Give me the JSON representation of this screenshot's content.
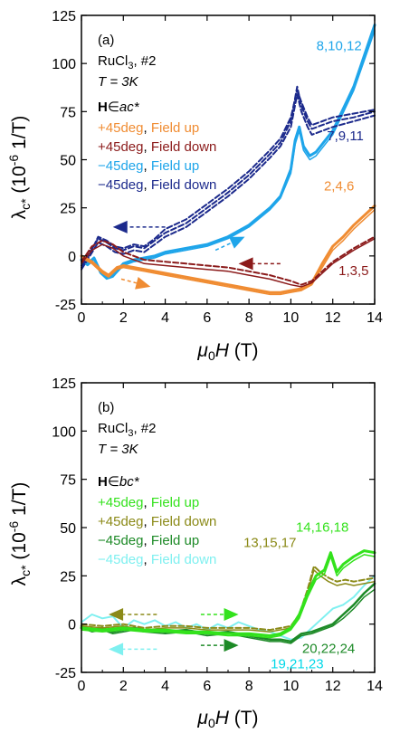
{
  "chart_data": [
    {
      "type": "line",
      "panel_label": "(a)",
      "sample_name": "RuCl",
      "sample_sub": "3",
      "sample_suffix": ", #2",
      "temperature": "T = 3K",
      "field_dir_prefix": "H",
      "field_dir_symbol": "∈",
      "field_dir_value": "ac*",
      "xlabel": "μ0H (T)",
      "ylabel": "λc* (10-6 1/T)",
      "xlim": [
        0,
        14
      ],
      "ylim": [
        -25,
        125
      ],
      "xticks": [
        0,
        2,
        4,
        6,
        8,
        10,
        12,
        14
      ],
      "yticks": [
        -25,
        0,
        25,
        50,
        75,
        100,
        125
      ],
      "legend": [
        {
          "angle": "+45deg",
          "dir": "Field up",
          "color": "#f08c32"
        },
        {
          "angle": "+45deg",
          "dir": "Field down",
          "color": "#8b1a1a"
        },
        {
          "angle": "−45deg",
          "dir": "Field up",
          "color": "#1ea5ea"
        },
        {
          "angle": "−45deg",
          "dir": "Field down",
          "color": "#1c2a8c"
        }
      ],
      "series": [
        {
          "color": "#1ea5ea",
          "dash": false,
          "width": 3,
          "x": [
            0,
            0.3,
            0.6,
            0.9,
            1.2,
            1.5,
            2,
            2.5,
            3,
            3.5,
            4,
            5,
            6,
            7,
            8,
            9,
            9.5,
            10,
            10.2,
            10.4,
            10.6,
            10.9,
            11.2,
            12,
            13,
            14
          ],
          "y": [
            -2,
            -4,
            -1,
            -8,
            -11,
            -10,
            -4,
            -2,
            -1,
            0,
            2,
            4,
            6,
            10,
            16,
            25,
            31,
            45,
            60,
            67,
            57,
            52,
            54,
            65,
            88,
            120
          ]
        },
        {
          "color": "#1ea5ea",
          "dash": false,
          "width": 1.5,
          "x": [
            0,
            0.3,
            0.6,
            0.9,
            1.2,
            1.5,
            2,
            2.5,
            3,
            3.5,
            4,
            5,
            6,
            7,
            8,
            9,
            9.5,
            10,
            10.2,
            10.4,
            10.6,
            10.9,
            11.2,
            12,
            13,
            14
          ],
          "y": [
            -3,
            -5,
            -2,
            -9,
            -12,
            -11,
            -5,
            -3,
            -2,
            -1,
            1,
            3,
            5,
            9,
            15,
            24,
            30,
            43,
            58,
            65,
            55,
            50,
            52,
            63,
            86,
            117
          ]
        },
        {
          "color": "#1c2a8c",
          "dash": true,
          "width": 2,
          "x": [
            0,
            0.4,
            0.8,
            1.2,
            1.6,
            2,
            2.5,
            3,
            3.5,
            4,
            5,
            6,
            7,
            8,
            9,
            9.5,
            10,
            10.3,
            10.5,
            10.8,
            11,
            11.5,
            12,
            13,
            14
          ],
          "y": [
            -5,
            2,
            9,
            7,
            4,
            3,
            5,
            4,
            8,
            12,
            17,
            25,
            33,
            42,
            53,
            59,
            70,
            88,
            78,
            70,
            66,
            68,
            70,
            72,
            75
          ]
        },
        {
          "color": "#1c2a8c",
          "dash": true,
          "width": 2,
          "x": [
            0,
            0.4,
            0.8,
            1.2,
            1.6,
            2,
            2.5,
            3,
            3.5,
            4,
            5,
            6,
            7,
            8,
            9,
            9.5,
            10,
            10.3,
            10.5,
            10.8,
            11,
            11.5,
            12,
            13,
            14
          ],
          "y": [
            -7,
            0,
            7,
            5,
            2,
            1,
            3,
            2,
            6,
            10,
            15,
            23,
            31,
            40,
            51,
            57,
            67,
            84,
            75,
            67,
            63,
            65,
            67,
            70,
            73
          ]
        },
        {
          "color": "#1c2a8c",
          "dash": true,
          "width": 2,
          "x": [
            0,
            0.4,
            0.8,
            1.2,
            1.6,
            2,
            2.5,
            3,
            3.5,
            4,
            5,
            6,
            7,
            8,
            9,
            9.5,
            10,
            10.3,
            10.5,
            10.8,
            11,
            11.5,
            12,
            13,
            14
          ],
          "y": [
            -6,
            1,
            10,
            8,
            5,
            4,
            6,
            5,
            9,
            14,
            19,
            27,
            35,
            44,
            55,
            61,
            72,
            86,
            80,
            72,
            68,
            70,
            72,
            74,
            76
          ]
        },
        {
          "color": "#f08c32",
          "dash": false,
          "width": 3,
          "x": [
            0,
            0.5,
            1,
            1.3,
            1.7,
            2,
            2.5,
            3,
            4,
            5,
            6,
            7,
            8,
            9,
            9.5,
            10,
            10.5,
            11,
            11.5,
            12,
            12.5,
            13,
            13.5,
            14
          ],
          "y": [
            0,
            -3,
            -8,
            -10,
            -6,
            -5,
            -6,
            -7,
            -9,
            -11,
            -13,
            -15,
            -17,
            -19,
            -19,
            -18,
            -17,
            -14,
            -4,
            5,
            10,
            16,
            21,
            26
          ]
        },
        {
          "color": "#f08c32",
          "dash": false,
          "width": 1.5,
          "x": [
            0,
            0.5,
            1,
            1.3,
            1.7,
            2,
            2.5,
            3,
            4,
            5,
            6,
            7,
            8,
            9,
            9.5,
            10,
            10.5,
            11,
            11.5,
            12,
            12.5,
            13,
            13.5,
            14
          ],
          "y": [
            -1,
            -4,
            -9,
            -11,
            -7,
            -6,
            -7,
            -8,
            -10,
            -12,
            -14,
            -16,
            -18,
            -20,
            -20,
            -19,
            -18,
            -15,
            -6,
            3,
            8,
            14,
            19,
            24
          ]
        },
        {
          "color": "#8b1a1a",
          "dash": true,
          "width": 2,
          "x": [
            0,
            0.5,
            1,
            1.5,
            2,
            3,
            4,
            5,
            6,
            7,
            8,
            9,
            10,
            10.5,
            11,
            11.5,
            12,
            13,
            14
          ],
          "y": [
            -3,
            5,
            8,
            6,
            2,
            -2,
            -3,
            -4,
            -5,
            -6,
            -8,
            -10,
            -13,
            -15,
            -13,
            -8,
            -3,
            4,
            10
          ]
        },
        {
          "color": "#8b1a1a",
          "dash": false,
          "width": 1.5,
          "x": [
            0,
            0.5,
            1,
            1.5,
            2,
            3,
            4,
            5,
            6,
            7,
            8,
            9,
            10,
            10.5,
            11,
            11.5,
            12,
            13,
            14
          ],
          "y": [
            -4,
            3,
            6,
            4,
            0,
            -4,
            -5,
            -6,
            -7,
            -8,
            -10,
            -12,
            -15,
            -16,
            -14,
            -9,
            -4,
            3,
            9
          ]
        }
      ],
      "annotations": [
        {
          "text": "8,10,12",
          "color": "#1ea5ea",
          "x": 12.3,
          "y": 107
        },
        {
          "text": "7,9,11",
          "color": "#1c2a8c",
          "x": 12.6,
          "y": 60
        },
        {
          "text": "2,4,6",
          "color": "#f08c32",
          "x": 12.3,
          "y": 34
        },
        {
          "text": "1,3,5",
          "color": "#8b1a1a",
          "x": 13.0,
          "y": -10
        }
      ],
      "arrows": [
        {
          "x1": 4.0,
          "y1": 15,
          "x2": 1.5,
          "y2": 15,
          "color": "#1c2a8c"
        },
        {
          "x1": 6.4,
          "y1": 3,
          "x2": 7.8,
          "y2": 10,
          "color": "#1ea5ea"
        },
        {
          "x1": 9.5,
          "y1": -4,
          "x2": 7.5,
          "y2": -4,
          "color": "#8b1a1a"
        },
        {
          "x1": 1.9,
          "y1": -12,
          "x2": 3.3,
          "y2": -16,
          "color": "#f08c32"
        }
      ]
    },
    {
      "type": "line",
      "panel_label": "(b)",
      "sample_name": "RuCl",
      "sample_sub": "3",
      "sample_suffix": ", #2",
      "temperature": "T = 3K",
      "field_dir_prefix": "H",
      "field_dir_symbol": "∈",
      "field_dir_value": "bc*",
      "xlabel": "μ0H (T)",
      "ylabel": "λc* (10-6 1/T)",
      "xlim": [
        0,
        14
      ],
      "ylim": [
        -25,
        125
      ],
      "xticks": [
        0,
        2,
        4,
        6,
        8,
        10,
        12,
        14
      ],
      "yticks": [
        -25,
        0,
        25,
        50,
        75,
        100,
        125
      ],
      "legend": [
        {
          "angle": "+45deg",
          "dir": "Field up",
          "color": "#33e21c"
        },
        {
          "angle": "+45deg",
          "dir": "Field down",
          "color": "#8b8a18"
        },
        {
          "angle": "−45deg",
          "dir": "Field up",
          "color": "#1d8a27"
        },
        {
          "angle": "−45deg",
          "dir": "Field down",
          "color": "#7ff0f0"
        }
      ],
      "series": [
        {
          "color": "#7ff0f0",
          "dash": false,
          "width": 2,
          "x": [
            0,
            0.5,
            1,
            1.5,
            2,
            2.5,
            3,
            3.5,
            4,
            4.5,
            5,
            5.5,
            6,
            6.5,
            7,
            7.5,
            8,
            8.5,
            9,
            9.5,
            10,
            10.5,
            11,
            11.5,
            12,
            12.5,
            13,
            13.5,
            14
          ],
          "y": [
            1,
            5,
            3,
            4,
            -2,
            2,
            0,
            2,
            -1,
            1,
            -2,
            0,
            -3,
            0,
            -2,
            1,
            -1,
            -3,
            -4,
            -6,
            -8,
            -7,
            -2,
            3,
            8,
            10,
            14,
            20,
            25
          ]
        },
        {
          "color": "#1d8a27",
          "dash": false,
          "width": 2.5,
          "x": [
            0,
            0.5,
            1,
            1.5,
            2,
            2.5,
            3,
            4,
            5,
            6,
            7,
            8,
            8.5,
            9,
            9.5,
            10,
            10.5,
            11,
            11.5,
            12,
            12.5,
            13,
            13.5,
            14
          ],
          "y": [
            -1,
            -3,
            -2,
            -4,
            -3,
            -2,
            -3,
            -4,
            -3,
            -5,
            -4,
            -6,
            -7,
            -8,
            -8,
            -9,
            -5,
            -4,
            -2,
            0,
            5,
            10,
            16,
            21
          ]
        },
        {
          "color": "#1d8a27",
          "dash": false,
          "width": 1.5,
          "x": [
            0,
            0.5,
            1,
            1.5,
            2,
            2.5,
            3,
            4,
            5,
            6,
            7,
            8,
            8.5,
            9,
            9.5,
            10,
            10.5,
            11,
            11.5,
            12,
            12.5,
            13,
            13.5,
            14
          ],
          "y": [
            -2,
            -4,
            -3,
            -5,
            -4,
            -3,
            -4,
            -5,
            -4,
            -6,
            -5,
            -7,
            -8,
            -9,
            -9,
            -10,
            -6,
            -5,
            -3,
            -1,
            3,
            8,
            14,
            18
          ]
        },
        {
          "color": "#8b8a18",
          "dash": true,
          "width": 2,
          "x": [
            0,
            1,
            2,
            3,
            4,
            5,
            6,
            7,
            8,
            9,
            10,
            10.4,
            10.8,
            11.1,
            11.4,
            11.8,
            12.2,
            12.6,
            13,
            13.5,
            14
          ],
          "y": [
            0,
            -1,
            0,
            -2,
            -1,
            -1,
            -2,
            -2,
            -2,
            -3,
            -1,
            5,
            18,
            30,
            27,
            24,
            22,
            23,
            22,
            23,
            24
          ]
        },
        {
          "color": "#8b8a18",
          "dash": false,
          "width": 1.5,
          "x": [
            0,
            1,
            2,
            3,
            4,
            5,
            6,
            7,
            8,
            9,
            10,
            10.4,
            10.8,
            11.1,
            11.4,
            11.8,
            12.2,
            12.6,
            13,
            13.5,
            14
          ],
          "y": [
            -1,
            -2,
            -1,
            -3,
            -2,
            -2,
            -3,
            -3,
            -3,
            -4,
            -2,
            4,
            16,
            28,
            25,
            22,
            20,
            21,
            20,
            21,
            22
          ]
        },
        {
          "color": "#33e21c",
          "dash": false,
          "width": 3,
          "x": [
            0,
            1,
            2,
            3,
            4,
            5,
            6,
            7,
            8,
            9,
            9.5,
            10,
            10.4,
            10.8,
            11.2,
            11.6,
            11.9,
            12.2,
            12.5,
            13,
            13.5,
            14
          ],
          "y": [
            -2,
            -3,
            -2,
            -3,
            -3,
            -4,
            -4,
            -5,
            -5,
            -6,
            -5,
            -2,
            5,
            16,
            25,
            28,
            37,
            27,
            31,
            35,
            38,
            37
          ]
        },
        {
          "color": "#33e21c",
          "dash": false,
          "width": 1.5,
          "x": [
            0,
            1,
            2,
            3,
            4,
            5,
            6,
            7,
            8,
            9,
            9.5,
            10,
            10.4,
            10.8,
            11.2,
            11.6,
            11.9,
            12.2,
            12.5,
            13,
            13.5,
            14
          ],
          "y": [
            -3,
            -4,
            -3,
            -4,
            -4,
            -5,
            -5,
            -6,
            -6,
            -7,
            -6,
            -3,
            3,
            14,
            23,
            26,
            35,
            25,
            29,
            33,
            36,
            35
          ]
        }
      ],
      "annotations": [
        {
          "text": "14,16,18",
          "color": "#33e21c",
          "x": 11.5,
          "y": 48
        },
        {
          "text": "13,15,17",
          "color": "#8b8a18",
          "x": 9.0,
          "y": 40
        },
        {
          "text": "20,22,24",
          "color": "#1d8a27",
          "x": 11.8,
          "y": -15
        },
        {
          "text": "19,21,23",
          "color": "#00d8e8",
          "x": 10.3,
          "y": -23
        }
      ],
      "arrows": [
        {
          "x1": 3.6,
          "y1": 5,
          "x2": 1.3,
          "y2": 5,
          "color": "#8b8a18"
        },
        {
          "x1": 5.7,
          "y1": 5,
          "x2": 7.5,
          "y2": 5,
          "color": "#33e21c"
        },
        {
          "x1": 3.6,
          "y1": -13,
          "x2": 1.3,
          "y2": -13,
          "color": "#7ff0f0"
        },
        {
          "x1": 5.7,
          "y1": -11,
          "x2": 7.5,
          "y2": -11,
          "color": "#1d8a27"
        }
      ]
    }
  ]
}
